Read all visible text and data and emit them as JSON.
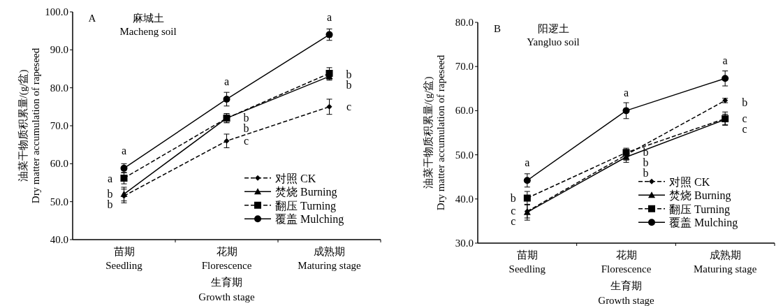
{
  "chart_data": [
    {
      "type": "line",
      "title": "麻城土",
      "subtitle": "Macheng soil",
      "xlabel": "生育期\nGrowth stage",
      "ylabel": "油菜干物质积累量/(g/盆)\nDry matter accumulation of rapeseed",
      "categories": [
        "苗期\nSeedling",
        "花期\nFlorescence",
        "成熟期\nMaturing stage"
      ],
      "series": [
        {
          "name": "对照 CK",
          "color": "#000000",
          "marker": "diamond",
          "line_style": "dashed",
          "values": [
            51.5,
            66.0,
            75.0
          ],
          "errors": [
            1.8,
            1.8,
            2.0
          ]
        },
        {
          "name": "焚烧 Burning",
          "color": "#000000",
          "marker": "triangle",
          "line_style": "solid",
          "values": [
            52.0,
            72.0,
            83.0
          ],
          "errors": [
            1.8,
            1.2,
            1.0
          ]
        },
        {
          "name": "翻压 Turning",
          "color": "#000000",
          "marker": "square",
          "line_style": "dashed",
          "values": [
            56.2,
            72.0,
            83.8
          ],
          "errors": [
            1.5,
            1.2,
            1.5
          ]
        },
        {
          "name": "覆盖 Mulching",
          "color": "#000000",
          "marker": "circle",
          "line_style": "solid",
          "values": [
            58.8,
            77.0,
            94.0
          ],
          "errors": [
            1.2,
            1.8,
            1.5
          ]
        }
      ],
      "ylim": [
        40,
        100
      ],
      "yticks": [
        {
          "value": 40,
          "label": "40.0"
        },
        {
          "value": 50,
          "label": "50.0"
        },
        {
          "value": 60,
          "label": "60.0"
        },
        {
          "value": 70,
          "label": "70.0"
        },
        {
          "value": 80,
          "label": "80.0"
        },
        {
          "value": 90,
          "label": "90.0"
        },
        {
          "value": 100,
          "label": "100.0"
        }
      ],
      "legend": "bottom right",
      "grid": false,
      "annotations": [
        "A",
        {
          "text": "a",
          "x": "苗期\nSeedling",
          "y": 58.8
        },
        {
          "text": "a",
          "x": "苗期\nSeedling",
          "y": 56.2
        },
        {
          "text": "b",
          "x": "苗期\nSeedling",
          "y": 52.0
        },
        {
          "text": "b",
          "x": "苗期\nSeedling",
          "y": 51.5
        },
        {
          "text": "a",
          "x": "花期\nFlorescence",
          "y": 77.0
        },
        {
          "text": "b",
          "x": "花期\nFlorescence",
          "y": 72.0
        },
        {
          "text": "b",
          "x": "花期\nFlorescence",
          "y": 72.0
        },
        {
          "text": "c",
          "x": "花期\nFlorescence",
          "y": 66.0
        },
        {
          "text": "a",
          "x": "成熟期\nMaturing stage",
          "y": 94.0
        },
        {
          "text": "b",
          "x": "成熟期\nMaturing stage",
          "y": 83.8
        },
        {
          "text": "b",
          "x": "成熟期\nMaturing stage",
          "y": 83.0
        },
        {
          "text": "c",
          "x": "成熟期\nMaturing stage",
          "y": 75.0
        }
      ]
    },
    {
      "type": "line",
      "title": "阳逻土",
      "subtitle": "Yangluo soil",
      "xlabel": "生育期\nGrowth stage",
      "ylabel": "油菜干物质积累量/(g/盆)\nDry matter accumulation of rapeseed",
      "categories": [
        "苗期\nSeedling",
        "花期\nFlorescence",
        "成熟期\nMaturing stage"
      ],
      "series": [
        {
          "name": "对照 CK",
          "color": "#000000",
          "marker": "diamond",
          "line_style": "dashed",
          "values": [
            37.2,
            50.0,
            62.3
          ],
          "errors": [
            1.5,
            1.2,
            0.5
          ]
        },
        {
          "name": "焚烧 Burning",
          "color": "#000000",
          "marker": "triangle",
          "line_style": "solid",
          "values": [
            37.0,
            49.5,
            58.0
          ],
          "errors": [
            1.8,
            1.2,
            1.2
          ]
        },
        {
          "name": "翻压 Turning",
          "color": "#000000",
          "marker": "square",
          "line_style": "dashed",
          "values": [
            40.2,
            50.5,
            58.2
          ],
          "errors": [
            1.5,
            1.0,
            1.5
          ]
        },
        {
          "name": "覆盖 Mulching",
          "color": "#000000",
          "marker": "circle",
          "line_style": "solid",
          "values": [
            44.2,
            60.0,
            67.3
          ],
          "errors": [
            1.5,
            1.8,
            1.7
          ]
        }
      ],
      "ylim": [
        30,
        80
      ],
      "yticks": [
        {
          "value": 30,
          "label": "30.0"
        },
        {
          "value": 40,
          "label": "40.0"
        },
        {
          "value": 50,
          "label": "50.0"
        },
        {
          "value": 60,
          "label": "60.0"
        },
        {
          "value": 70,
          "label": "70.0"
        },
        {
          "value": 80,
          "label": "80.0"
        }
      ],
      "legend": "bottom right",
      "grid": false,
      "annotations": [
        "B",
        {
          "text": "a",
          "x": "苗期\nSeedling",
          "y": 44.2
        },
        {
          "text": "b",
          "x": "苗期\nSeedling",
          "y": 40.2
        },
        {
          "text": "c",
          "x": "苗期\nSeedling",
          "y": 37.2
        },
        {
          "text": "c",
          "x": "苗期\nSeedling",
          "y": 37.0
        },
        {
          "text": "a",
          "x": "花期\nFlorescence",
          "y": 60.0
        },
        {
          "text": "b",
          "x": "花期\nFlorescence",
          "y": 50.5
        },
        {
          "text": "b",
          "x": "花期\nFlorescence",
          "y": 50.0
        },
        {
          "text": "b",
          "x": "花期\nFlorescence",
          "y": 49.5
        },
        {
          "text": "a",
          "x": "成熟期\nMaturing stage",
          "y": 67.3
        },
        {
          "text": "b",
          "x": "成熟期\nMaturing stage",
          "y": 62.3
        },
        {
          "text": "c",
          "x": "成熟期\nMaturing stage",
          "y": 58.2
        },
        {
          "text": "c",
          "x": "成熟期\nMaturing stage",
          "y": 58.0
        }
      ]
    }
  ]
}
